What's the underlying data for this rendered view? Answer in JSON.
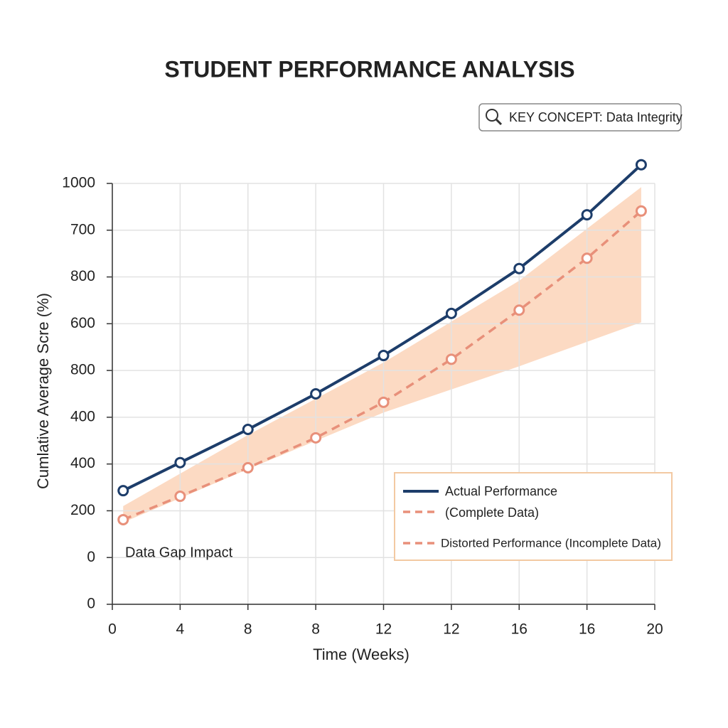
{
  "chart_data": {
    "type": "line",
    "title": "STUDENT PERFORMANCE ANALYSIS",
    "key_concept": "KEY CONCEPT: Data Integrity",
    "annotation": "Data Gap Impact",
    "xlabel": "Time (Weeks)",
    "ylabel": "Cumlative Average Scre (%)",
    "xlim": [
      0,
      20
    ],
    "xticks": [
      0,
      {
        "value": 2.5,
        "label": "4"
      },
      {
        "value": 5,
        "label": "8"
      },
      {
        "value": 7.5,
        "label": "8"
      },
      {
        "value": 10,
        "label": "12"
      },
      {
        "value": 12.5,
        "label": "12"
      },
      {
        "value": 15,
        "label": "16"
      },
      {
        "value": 17.5,
        "label": "16"
      },
      20
    ],
    "ylim": [
      0,
      900
    ],
    "yticks": [
      0,
      {
        "value": 100,
        "label": "0"
      },
      200,
      {
        "value": 300,
        "label": "400"
      },
      400,
      {
        "value": 500,
        "label": "800"
      },
      600,
      {
        "value": 700,
        "label": "800"
      },
      {
        "value": 800,
        "label": "700"
      },
      {
        "value": 900,
        "label": "1000"
      }
    ],
    "grid": true,
    "legend_note": "(Complete Data)",
    "band": {
      "color": "#fbd3b8",
      "x": [
        0.4,
        5,
        10,
        15,
        19.5
      ],
      "upper": [
        210,
        362,
        517,
        692,
        892
      ],
      "lower": [
        175,
        289,
        410,
        509,
        603
      ]
    },
    "series": [
      {
        "name": "Actual Performance",
        "color": "#1d3d6a",
        "dash": false,
        "x": [
          0.4,
          2.5,
          5,
          7.5,
          10,
          12.5,
          15,
          17.5,
          19.5
        ],
        "values": [
          243,
          303,
          374,
          450,
          532,
          622,
          718,
          833,
          940
        ]
      },
      {
        "name": "Distorted Performance (Incomplete Data)",
        "color": "#e8907a",
        "dash": true,
        "x": [
          0.4,
          2.5,
          5,
          7.5,
          10,
          12.5,
          15,
          17.5,
          19.5
        ],
        "values": [
          181,
          231,
          292,
          356,
          432,
          524,
          629,
          740,
          841
        ]
      }
    ]
  }
}
